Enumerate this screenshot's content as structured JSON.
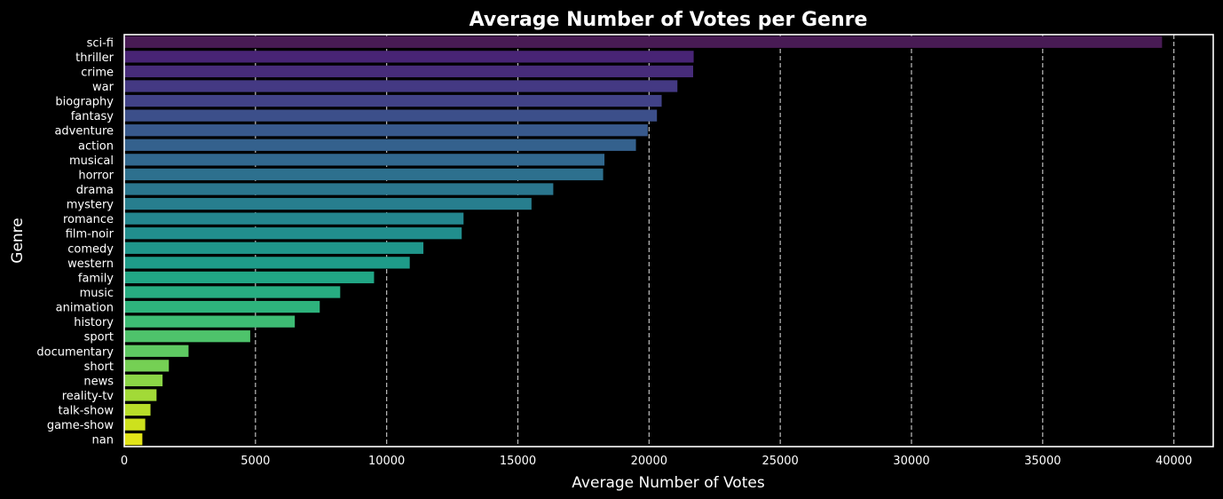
{
  "chart_data": {
    "type": "bar",
    "orientation": "horizontal",
    "title": "Average Number of Votes per Genre",
    "xlabel": "Average Number of Votes",
    "ylabel": "Genre",
    "xlim": [
      0,
      41500
    ],
    "xticks": [
      0,
      5000,
      10000,
      15000,
      20000,
      25000,
      30000,
      35000,
      40000
    ],
    "grid": "x-dashed",
    "colormap": "viridis",
    "categories": [
      "sci-fi",
      "thriller",
      "crime",
      "war",
      "biography",
      "fantasy",
      "adventure",
      "action",
      "musical",
      "horror",
      "drama",
      "mystery",
      "romance",
      "film-noir",
      "comedy",
      "western",
      "family",
      "music",
      "animation",
      "history",
      "sport",
      "documentary",
      "short",
      "news",
      "reality-tv",
      "talk-show",
      "game-show",
      "nan"
    ],
    "values": [
      39550,
      21700,
      21680,
      21080,
      20480,
      20300,
      19950,
      19500,
      18300,
      18250,
      16350,
      15520,
      12930,
      12860,
      11400,
      10880,
      9520,
      8230,
      7450,
      6500,
      4800,
      2450,
      1700,
      1460,
      1230,
      1000,
      800,
      690
    ],
    "colors": [
      "#481b54",
      "#482475",
      "#472c7a",
      "#443983",
      "#414287",
      "#3c4f8a",
      "#38598c",
      "#34618d",
      "#31688e",
      "#2d708e",
      "#2a768e",
      "#277e8e",
      "#24868e",
      "#218e8d",
      "#1f968b",
      "#1e9c89",
      "#21a685",
      "#27ad81",
      "#2eb37c",
      "#3dbc74",
      "#4ec36b",
      "#5ec962",
      "#75d054",
      "#8bd646",
      "#a2da37",
      "#b8de29",
      "#cde11d",
      "#e2e418"
    ]
  }
}
